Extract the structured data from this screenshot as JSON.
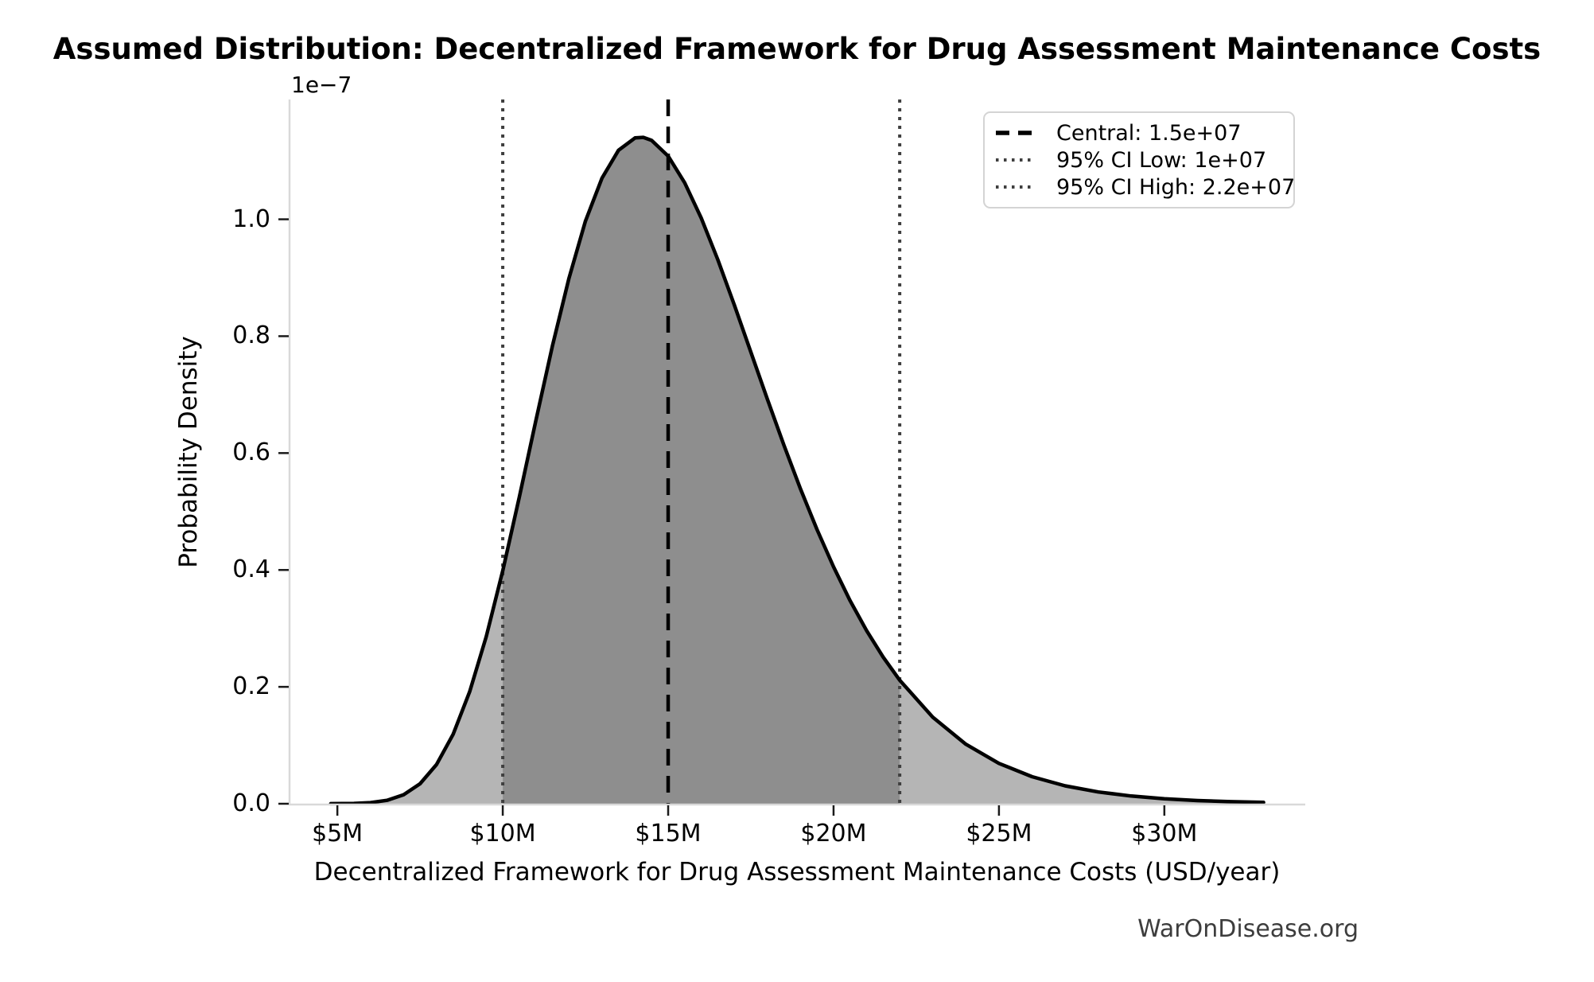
{
  "title": "Assumed Distribution: Decentralized Framework for Drug Assessment Maintenance Costs",
  "watermark": "WarOnDisease.org",
  "axes": {
    "x_label": "Decentralized Framework for Drug Assessment Maintenance Costs (USD/year)",
    "y_label": "Probability Density",
    "y_offset_label": "1e−7",
    "x_ticks": [
      {
        "value": 5,
        "label": "$5M"
      },
      {
        "value": 10,
        "label": "$10M"
      },
      {
        "value": 15,
        "label": "$15M"
      },
      {
        "value": 20,
        "label": "$20M"
      },
      {
        "value": 25,
        "label": "$25M"
      },
      {
        "value": 30,
        "label": "$30M"
      }
    ],
    "y_ticks": [
      {
        "value": 0.0,
        "label": "0.0"
      },
      {
        "value": 0.2,
        "label": "0.2"
      },
      {
        "value": 0.4,
        "label": "0.4"
      },
      {
        "value": 0.6,
        "label": "0.6"
      },
      {
        "value": 0.8,
        "label": "0.8"
      },
      {
        "value": 1.0,
        "label": "1.0"
      }
    ]
  },
  "legend": {
    "items": [
      {
        "label": "Central: 1.5e+07",
        "style": "dashed",
        "color": "#000000"
      },
      {
        "label": "95% CI Low: 1e+07",
        "style": "dotted",
        "color": "#3f3f3f"
      },
      {
        "label": "95% CI High: 2.2e+07",
        "style": "dotted",
        "color": "#3f3f3f"
      }
    ]
  },
  "colors": {
    "curve": "#000000",
    "fill_light": "#b5b5b5",
    "fill_dark": "#8e8e8e",
    "central_line": "#000000",
    "ci_line": "#3f3f3f",
    "spine": "#d9d9d9",
    "tick": "#1a1a1a"
  },
  "chart_data": {
    "type": "area",
    "title": "Assumed Distribution: Decentralized Framework for Drug Assessment Maintenance Costs",
    "xlabel": "Decentralized Framework for Drug Assessment Maintenance Costs (USD/year)",
    "ylabel": "Probability Density",
    "y_scale_factor": "1e-7",
    "distribution": "lognormal",
    "central_value": 15000000,
    "ci95_low": 10000000,
    "ci95_high": 22000000,
    "shaded_ci_region_millions": [
      10,
      22
    ],
    "peak": {
      "x_millions": 14.2,
      "density_1e7": 1.14
    },
    "x_axis": {
      "unit": "USD (millions)",
      "range_millions": [
        3.53,
        34.26
      ],
      "ticks_millions": [
        5,
        10,
        15,
        20,
        25,
        30
      ]
    },
    "y_axis": {
      "max_density": 1.205,
      "ticks": [
        0.0,
        0.2,
        0.4,
        0.6,
        0.8,
        1.0
      ]
    },
    "legend_position": "upper right",
    "grid": false,
    "curve": {
      "x_millions": [
        4.8,
        5.5,
        6,
        6.5,
        7,
        7.5,
        8,
        8.5,
        9,
        9.5,
        10,
        10.5,
        11,
        11.5,
        12,
        12.5,
        13,
        13.5,
        14,
        14.25,
        14.5,
        15,
        15.5,
        16,
        16.5,
        17,
        17.5,
        18,
        18.5,
        19,
        19.5,
        20,
        20.5,
        21,
        21.5,
        22,
        23,
        24,
        25,
        26,
        27,
        28,
        29,
        30,
        31,
        32,
        33
      ],
      "density_1e7": [
        0.0001,
        0.0005,
        0.0019,
        0.0059,
        0.0153,
        0.0342,
        0.0672,
        0.1189,
        0.1919,
        0.2859,
        0.3988,
        0.5248,
        0.6556,
        0.7832,
        0.8991,
        0.9968,
        1.0703,
        1.1181,
        1.1393,
        1.1402,
        1.135,
        1.1082,
        1.0624,
        1.0021,
        0.9311,
        0.8534,
        0.7727,
        0.6921,
        0.6134,
        0.5387,
        0.469,
        0.4052,
        0.3476,
        0.2963,
        0.251,
        0.2115,
        0.148,
        0.1018,
        0.0691,
        0.0463,
        0.0307,
        0.0202,
        0.0132,
        0.0086,
        0.0055,
        0.0036,
        0.0023
      ]
    }
  }
}
